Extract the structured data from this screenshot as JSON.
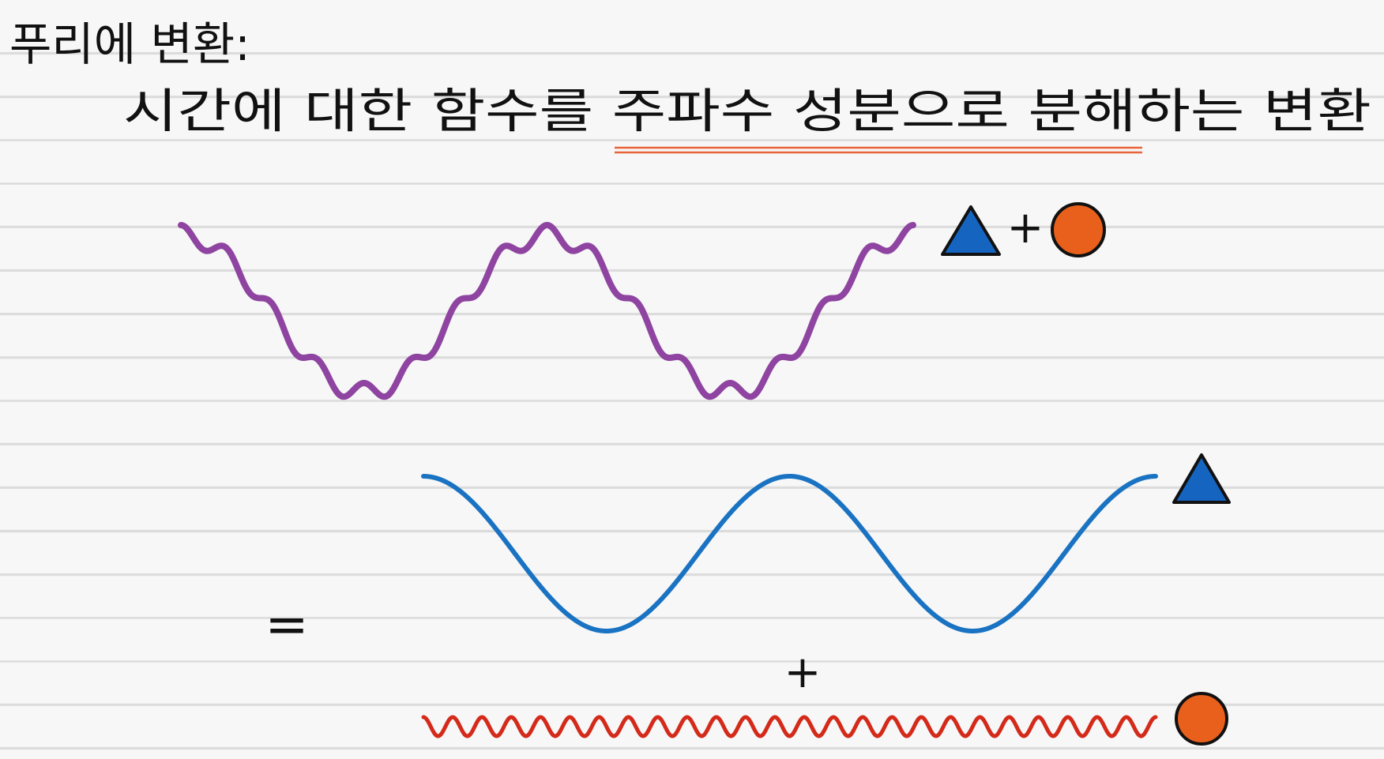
{
  "title": "푸리에 변환:",
  "subtitle": "시간에 대한 함수를 주파수 성분으로 분해하는 변환",
  "symbols": {
    "top_plus": "+",
    "equals": "=",
    "bottom_plus": "+"
  }
}
